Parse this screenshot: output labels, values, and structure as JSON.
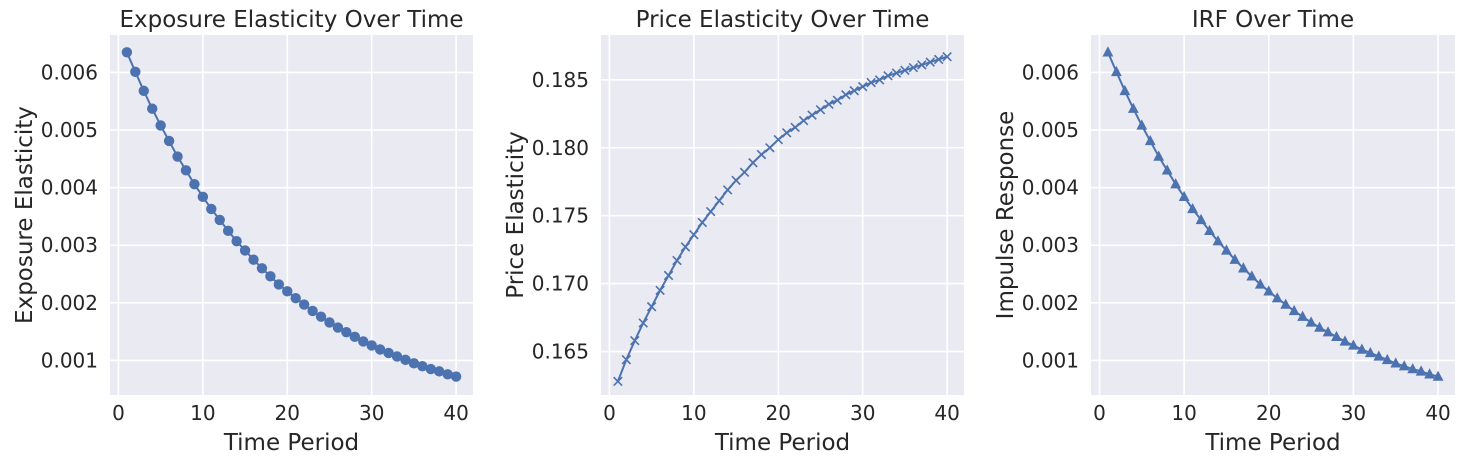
{
  "colors": {
    "series": "#4C72B0",
    "background": "#EAEAF2",
    "grid": "#FFFFFF"
  },
  "chart_data": [
    {
      "type": "line",
      "title": "Exposure Elasticity Over Time",
      "xlabel": "Time Period",
      "ylabel": "Exposure Elasticity",
      "marker": "circle",
      "grid": true,
      "xlim": [
        -1,
        42
      ],
      "ylim": [
        0.0004,
        0.00665
      ],
      "xticks": [
        0,
        10,
        20,
        30,
        40
      ],
      "xtick_labels": [
        "0",
        "10",
        "20",
        "30",
        "40"
      ],
      "yticks": [
        0.001,
        0.002,
        0.003,
        0.004,
        0.005,
        0.006
      ],
      "ytick_labels": [
        "0.001",
        "0.002",
        "0.003",
        "0.004",
        "0.005",
        "0.006"
      ],
      "series": [
        {
          "x": [
            1,
            2,
            3,
            4,
            5,
            6,
            7,
            8,
            9,
            10,
            11,
            12,
            13,
            14,
            15,
            16,
            17,
            18,
            19,
            20,
            21,
            22,
            23,
            24,
            25,
            26,
            27,
            28,
            29,
            30,
            31,
            32,
            33,
            34,
            35,
            36,
            37,
            38,
            39,
            40
          ],
          "values": [
            0.00635,
            0.00601,
            0.00568,
            0.00537,
            0.00508,
            0.00481,
            0.00454,
            0.0043,
            0.00406,
            0.00384,
            0.00363,
            0.00344,
            0.00325,
            0.00307,
            0.00291,
            0.00275,
            0.0026,
            0.00246,
            0.00232,
            0.0022,
            0.00208,
            0.00197,
            0.00186,
            0.00176,
            0.00166,
            0.00157,
            0.00149,
            0.00141,
            0.00133,
            0.00126,
            0.00119,
            0.00113,
            0.00107,
            0.00101,
            0.00095,
            0.0009,
            0.00085,
            0.00081,
            0.00076,
            0.00072
          ]
        }
      ]
    },
    {
      "type": "line",
      "title": "Price Elasticity Over Time",
      "xlabel": "Time Period",
      "ylabel": "Price Elasticity",
      "marker": "x",
      "grid": true,
      "xlim": [
        -1,
        42
      ],
      "ylim": [
        0.1618,
        0.1883
      ],
      "xticks": [
        0,
        10,
        20,
        30,
        40
      ],
      "xtick_labels": [
        "0",
        "10",
        "20",
        "30",
        "40"
      ],
      "yticks": [
        0.165,
        0.17,
        0.175,
        0.18,
        0.185
      ],
      "ytick_labels": [
        "0.165",
        "0.170",
        "0.175",
        "0.180",
        "0.185"
      ],
      "series": [
        {
          "x": [
            1,
            2,
            3,
            4,
            5,
            6,
            7,
            8,
            9,
            10,
            11,
            12,
            13,
            14,
            15,
            16,
            17,
            18,
            19,
            20,
            21,
            22,
            23,
            24,
            25,
            26,
            27,
            28,
            29,
            30,
            31,
            32,
            33,
            34,
            35,
            36,
            37,
            38,
            39,
            40
          ],
          "values": [
            0.1628,
            0.1644,
            0.1658,
            0.1671,
            0.1683,
            0.1695,
            0.1706,
            0.1717,
            0.1727,
            0.1736,
            0.1745,
            0.1753,
            0.1761,
            0.1769,
            0.1776,
            0.1782,
            0.1789,
            0.1795,
            0.18,
            0.1806,
            0.1811,
            0.1815,
            0.182,
            0.1824,
            0.1828,
            0.1832,
            0.1835,
            0.1839,
            0.1842,
            0.1845,
            0.1848,
            0.185,
            0.1853,
            0.1855,
            0.1857,
            0.1859,
            0.1861,
            0.1863,
            0.1865,
            0.1867
          ]
        }
      ]
    },
    {
      "type": "line",
      "title": "IRF Over Time",
      "xlabel": "Time Period",
      "ylabel": "Impulse Response",
      "marker": "triangle",
      "grid": true,
      "xlim": [
        -1,
        42
      ],
      "ylim": [
        0.0004,
        0.00665
      ],
      "xticks": [
        0,
        10,
        20,
        30,
        40
      ],
      "xtick_labels": [
        "0",
        "10",
        "20",
        "30",
        "40"
      ],
      "yticks": [
        0.001,
        0.002,
        0.003,
        0.004,
        0.005,
        0.006
      ],
      "ytick_labels": [
        "0.001",
        "0.002",
        "0.003",
        "0.004",
        "0.005",
        "0.006"
      ],
      "series": [
        {
          "x": [
            1,
            2,
            3,
            4,
            5,
            6,
            7,
            8,
            9,
            10,
            11,
            12,
            13,
            14,
            15,
            16,
            17,
            18,
            19,
            20,
            21,
            22,
            23,
            24,
            25,
            26,
            27,
            28,
            29,
            30,
            31,
            32,
            33,
            34,
            35,
            36,
            37,
            38,
            39,
            40
          ],
          "values": [
            0.00635,
            0.00601,
            0.00568,
            0.00537,
            0.00508,
            0.00481,
            0.00454,
            0.0043,
            0.00406,
            0.00384,
            0.00363,
            0.00344,
            0.00325,
            0.00307,
            0.00291,
            0.00275,
            0.0026,
            0.00246,
            0.00232,
            0.0022,
            0.00208,
            0.00197,
            0.00186,
            0.00176,
            0.00166,
            0.00157,
            0.00149,
            0.00141,
            0.00133,
            0.00126,
            0.00119,
            0.00113,
            0.00107,
            0.00101,
            0.00095,
            0.0009,
            0.00085,
            0.00081,
            0.00076,
            0.00072
          ]
        }
      ]
    }
  ]
}
